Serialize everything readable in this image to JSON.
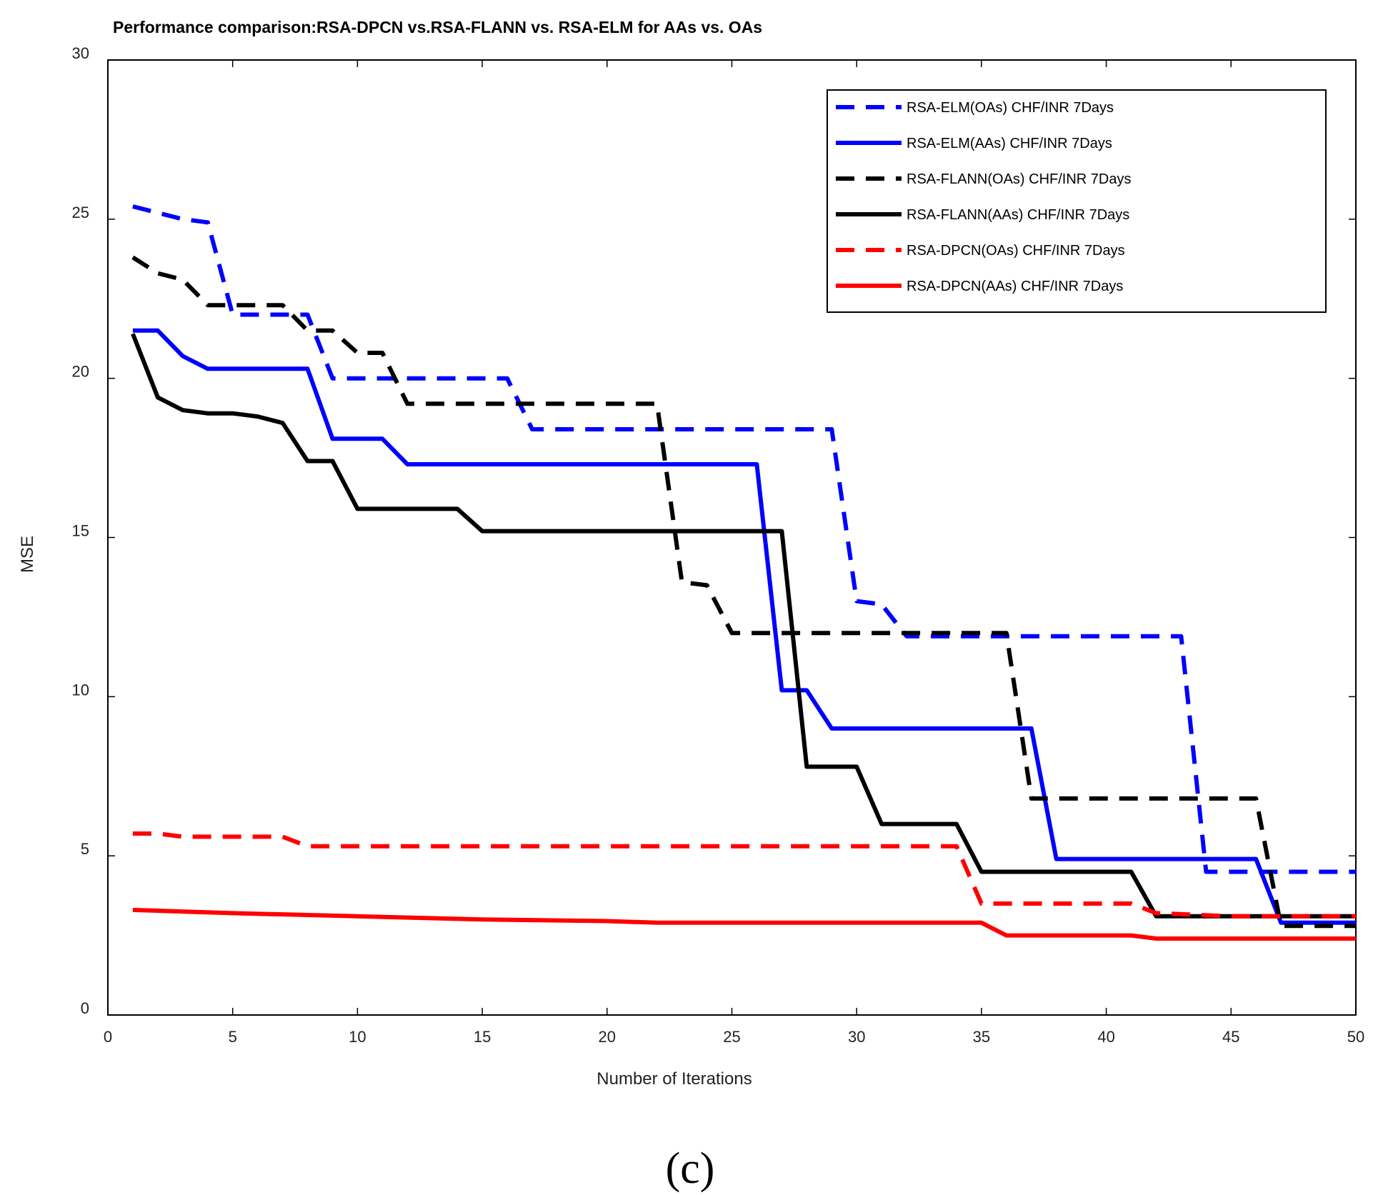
{
  "chart_data": {
    "type": "line",
    "title": "Performance comparison:RSA-DPCN vs.RSA-FLANN vs. RSA-ELM for AAs vs. OAs",
    "xlabel": "Number of Iterations",
    "ylabel": "MSE",
    "xlim": [
      0,
      50
    ],
    "ylim": [
      0,
      30
    ],
    "xticks": [
      0,
      5,
      10,
      15,
      20,
      25,
      30,
      35,
      40,
      45,
      50
    ],
    "yticks": [
      0,
      5,
      10,
      15,
      20,
      25,
      30
    ],
    "legend_position": "top-right",
    "caption": "(c)",
    "series": [
      {
        "name": "RSA-ELM(OAs) CHF/INR 7Days",
        "color": "#0000ff",
        "style": "dashed",
        "x": [
          1,
          3,
          4,
          5,
          8,
          9,
          16,
          17,
          29,
          30,
          31,
          32,
          43,
          44,
          50
        ],
        "y": [
          25.4,
          25.0,
          24.9,
          22.0,
          22.0,
          20.0,
          20.0,
          18.4,
          18.4,
          13.0,
          12.9,
          11.9,
          11.9,
          4.5,
          4.5
        ]
      },
      {
        "name": "RSA-ELM(AAs) CHF/INR 7Days",
        "color": "#0000ff",
        "style": "solid",
        "x": [
          1,
          2,
          3,
          4,
          8,
          9,
          11,
          12,
          26,
          27,
          28,
          29,
          37,
          38,
          46,
          47,
          50
        ],
        "y": [
          21.5,
          21.5,
          20.7,
          20.3,
          20.3,
          18.1,
          18.1,
          17.3,
          17.3,
          10.2,
          10.2,
          9.0,
          9.0,
          4.9,
          4.9,
          2.9,
          2.9
        ]
      },
      {
        "name": "RSA-FLANN(OAs) CHF/INR 7Days",
        "color": "#000000",
        "style": "dashed",
        "x": [
          1,
          2,
          3,
          4,
          7,
          8,
          9,
          10,
          11,
          12,
          22,
          23,
          24,
          25,
          35,
          36,
          37,
          46,
          47,
          50
        ],
        "y": [
          23.8,
          23.3,
          23.1,
          22.3,
          22.3,
          21.5,
          21.5,
          20.8,
          20.8,
          19.2,
          19.2,
          13.6,
          13.5,
          12.0,
          12.0,
          12.0,
          6.8,
          6.8,
          2.8,
          2.8
        ]
      },
      {
        "name": "RSA-FLANN(AAs) CHF/INR 7Days",
        "color": "#000000",
        "style": "solid",
        "x": [
          1,
          2,
          3,
          4,
          5,
          6,
          7,
          8,
          9,
          10,
          14,
          15,
          27,
          28,
          30,
          31,
          34,
          35,
          41,
          42,
          50
        ],
        "y": [
          21.4,
          19.4,
          19.0,
          18.9,
          18.9,
          18.8,
          18.6,
          17.4,
          17.4,
          15.9,
          15.9,
          15.2,
          15.2,
          7.8,
          7.8,
          6.0,
          6.0,
          4.5,
          4.5,
          3.1,
          3.1
        ]
      },
      {
        "name": "RSA-DPCN(OAs) CHF/INR 7Days",
        "color": "#ff0000",
        "style": "dashed",
        "x": [
          1,
          2,
          3,
          7,
          8,
          34,
          35,
          41,
          42,
          45,
          50
        ],
        "y": [
          5.7,
          5.7,
          5.6,
          5.6,
          5.3,
          5.3,
          3.5,
          3.5,
          3.2,
          3.1,
          3.1
        ]
      },
      {
        "name": "RSA-DPCN(AAs) CHF/INR 7Days",
        "color": "#ff0000",
        "style": "solid",
        "x": [
          1,
          5,
          10,
          15,
          20,
          22,
          34,
          35,
          36,
          41,
          42,
          50
        ],
        "y": [
          3.3,
          3.2,
          3.1,
          3.0,
          2.95,
          2.9,
          2.9,
          2.9,
          2.5,
          2.5,
          2.4,
          2.4
        ]
      }
    ]
  }
}
